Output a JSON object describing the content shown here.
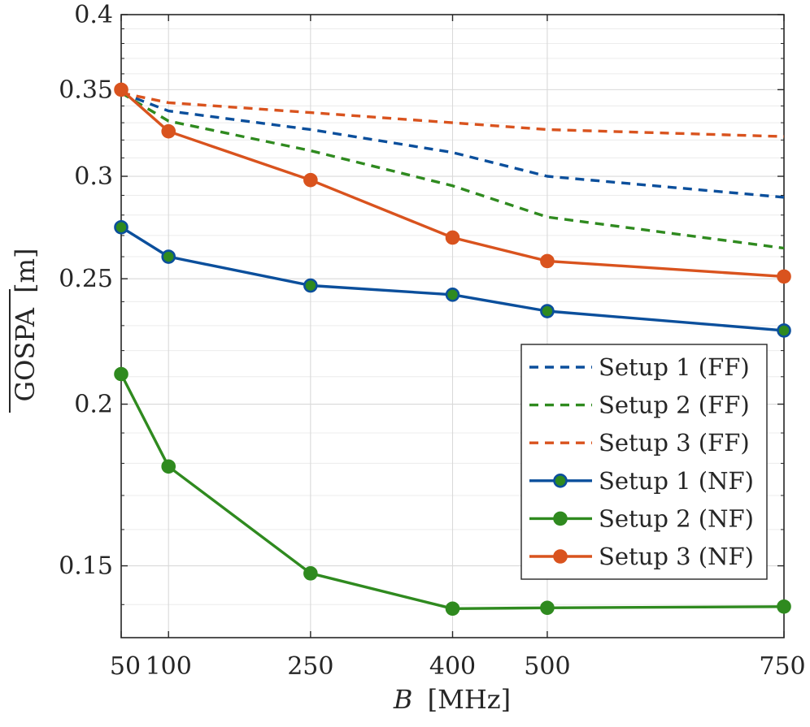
{
  "chart_data": {
    "type": "line",
    "xlabel_var": "B",
    "xlabel_unit": "[MHz]",
    "ylabel_main": "GOSPA",
    "ylabel_unit": "[m]",
    "yscale": "log",
    "xlim": [
      50,
      750
    ],
    "ylim": [
      0.132,
      0.4
    ],
    "xticks": [
      50,
      100,
      250,
      400,
      500,
      750
    ],
    "xtick_labels": [
      "50",
      "100",
      "250",
      "400",
      "500",
      "750"
    ],
    "yticks": [
      0.15,
      0.2,
      0.25,
      0.3,
      0.35,
      0.4
    ],
    "ytick_labels": [
      "0.15",
      "0.2",
      "0.25",
      "0.3",
      "0.35",
      "0.4"
    ],
    "grid": true,
    "legend_position": "lower-right",
    "x": [
      50,
      100,
      250,
      400,
      500,
      750
    ],
    "series": [
      {
        "name": "Setup 1 (FF)",
        "color": "#0b4f9c",
        "style": "dashed",
        "marker": false,
        "values": [
          0.348,
          0.337,
          0.326,
          0.313,
          0.3,
          0.289
        ]
      },
      {
        "name": "Setup 2 (FF)",
        "color": "#2f8a1f",
        "style": "dashed",
        "marker": false,
        "values": [
          0.348,
          0.331,
          0.314,
          0.295,
          0.279,
          0.264
        ]
      },
      {
        "name": "Setup 3 (FF)",
        "color": "#d9531e",
        "style": "dashed",
        "marker": false,
        "values": [
          0.348,
          0.342,
          0.336,
          0.33,
          0.326,
          0.322
        ]
      },
      {
        "name": "Setup 1 (NF)",
        "color": "#0b4f9c",
        "markerFill": "#2f8a1f",
        "style": "solid",
        "marker": true,
        "values": [
          0.274,
          0.26,
          0.247,
          0.243,
          0.236,
          0.228
        ]
      },
      {
        "name": "Setup 2 (NF)",
        "color": "#2f8a1f",
        "markerFill": "#2f8a1f",
        "style": "solid",
        "marker": true,
        "values": [
          0.211,
          0.179,
          0.148,
          0.139,
          0.1392,
          0.1395
        ]
      },
      {
        "name": "Setup 3 (NF)",
        "color": "#d9531e",
        "markerFill": "#d9531e",
        "style": "solid",
        "marker": true,
        "values": [
          0.35,
          0.325,
          0.298,
          0.269,
          0.258,
          0.251
        ]
      }
    ]
  }
}
